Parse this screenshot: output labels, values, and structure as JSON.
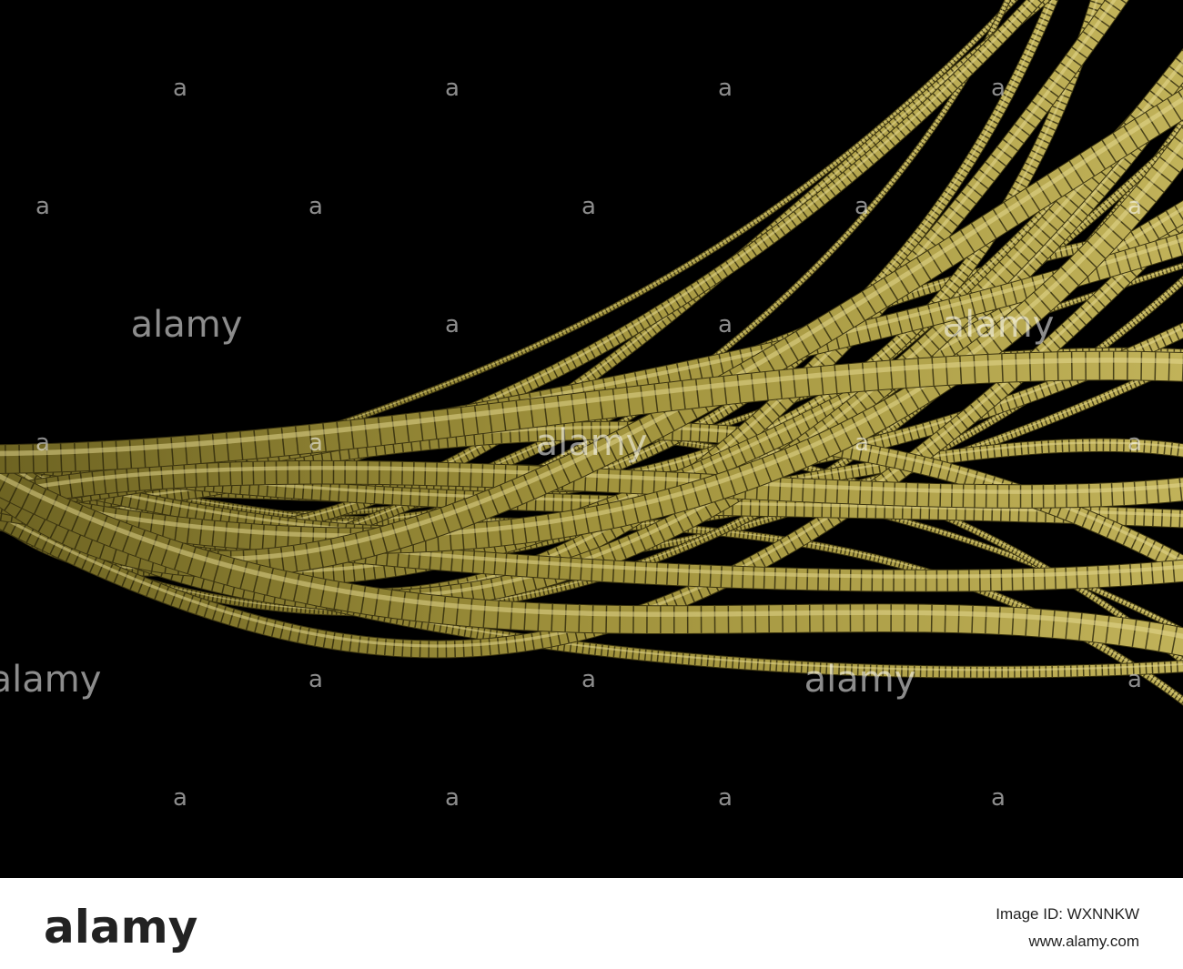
{
  "watermark": {
    "logo": "alamy",
    "mark": "a"
  },
  "footer": {
    "logo": "alamy",
    "image_id": "Image ID: WXNNKW",
    "url": "www.alamy.com"
  }
}
